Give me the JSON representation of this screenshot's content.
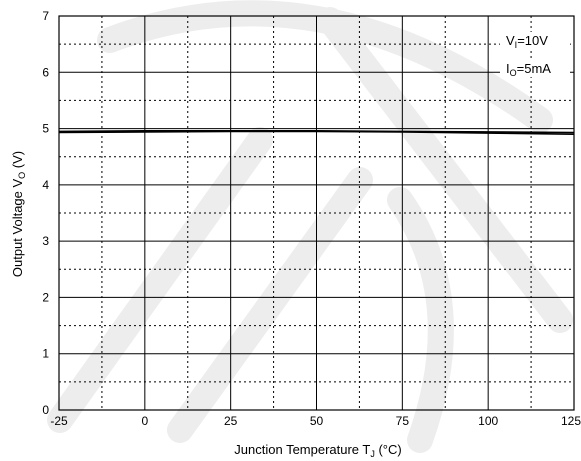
{
  "chart_data": {
    "type": "line",
    "title": "",
    "xlabel": "Junction Temperature",
    "xlabel_symbol": "T",
    "xlabel_symbol_sub": "J",
    "xlabel_unit": "(°C)",
    "ylabel": "Output Voltage",
    "ylabel_symbol": "V",
    "ylabel_symbol_sub": "O",
    "ylabel_unit": "(V)",
    "xlim": [
      -25,
      125
    ],
    "ylim": [
      0,
      7
    ],
    "xticks": [
      -25,
      0,
      25,
      50,
      75,
      100,
      125
    ],
    "yticks": [
      0,
      1,
      2,
      3,
      4,
      5,
      6,
      7
    ],
    "grid": true,
    "annotations": [
      {
        "main": "V",
        "sub": "I",
        "rest": "=10V"
      },
      {
        "main": "I",
        "sub": "O",
        "rest": "=5mA"
      }
    ],
    "series": [
      {
        "x": [
          -25,
          0,
          25,
          50,
          75,
          100,
          125
        ],
        "y": [
          4.95,
          4.96,
          4.96,
          4.96,
          4.95,
          4.94,
          4.93
        ]
      },
      {
        "x": [
          -25,
          0,
          25,
          50,
          75,
          100,
          125
        ],
        "y": [
          4.93,
          4.94,
          4.95,
          4.95,
          4.94,
          4.92,
          4.9
        ]
      }
    ],
    "colors": {
      "line": "#000000",
      "grid": "#000000",
      "watermark": "#d8d8d8"
    }
  }
}
